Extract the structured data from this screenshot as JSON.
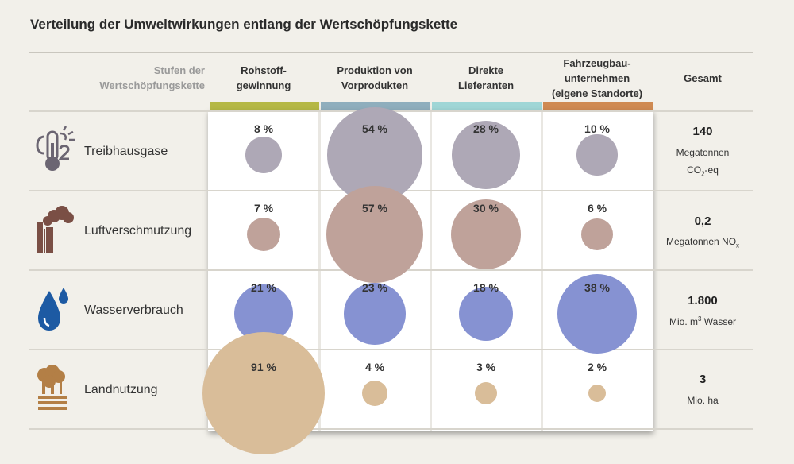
{
  "title": "Verteilung der Umweltwirkungen entlang der Wertschöpfungskette",
  "header": {
    "row_header_line1": "Stufen der",
    "row_header_line2": "Wertschöpfungskette",
    "columns": [
      {
        "line1": "Rohstoff-",
        "line2": "gewinnung",
        "line3": "",
        "color": "#b5b845"
      },
      {
        "line1": "Produktion von",
        "line2": "Vorprodukten",
        "line3": "",
        "color": "#8faebd"
      },
      {
        "line1": "Direkte",
        "line2": "Lieferanten",
        "line3": "",
        "color": "#9fd6d6"
      },
      {
        "line1": "Fahrzeugbau-",
        "line2": "unternehmen",
        "line3": "(eigene Standorte)",
        "color": "#cf8a52"
      }
    ],
    "total_label": "Gesamt"
  },
  "chart_data": {
    "type": "table",
    "categories": [
      "Rohstoffgewinnung",
      "Produktion von Vorprodukten",
      "Direkte Lieferanten",
      "Fahrzeugbauunternehmen (eigene Standorte)"
    ],
    "series": [
      {
        "name": "Treibhausgase",
        "values": [
          8,
          54,
          28,
          10
        ],
        "labels": [
          "8 %",
          "54 %",
          "28 %",
          "10 %"
        ],
        "color": "#aea8b6",
        "icon": "co2-thermometer-icon",
        "total_value": "140",
        "total_unit_line1": "Megatonnen",
        "total_unit_main": "CO",
        "total_unit_sub": "2",
        "total_unit_tail": "-eq"
      },
      {
        "name": "Luftverschmutzung",
        "values": [
          7,
          57,
          30,
          6
        ],
        "labels": [
          "7 %",
          "57 %",
          "30 %",
          "6 %"
        ],
        "color": "#bfa29a",
        "icon": "factory-smoke-icon",
        "total_value": "0,2",
        "total_unit_line1": "",
        "total_unit_main": "Megatonnen NO",
        "total_unit_sub": "x",
        "total_unit_tail": ""
      },
      {
        "name": "Wasserverbrauch",
        "values": [
          21,
          23,
          18,
          38
        ],
        "labels": [
          "21 %",
          "23 %",
          "18 %",
          "38 %"
        ],
        "color": "#8692d2",
        "icon": "water-drops-icon",
        "total_value": "1.800",
        "total_unit_line1": "",
        "total_unit_main": "Mio. m",
        "total_unit_sup": "3",
        "total_unit_tail": " Wasser"
      },
      {
        "name": "Landnutzung",
        "values": [
          91,
          4,
          3,
          2
        ],
        "labels": [
          "91 %",
          "4 %",
          "3 %",
          "2 %"
        ],
        "color": "#d9bd99",
        "icon": "trees-land-icon",
        "total_value": "3",
        "total_unit_line1": "",
        "total_unit_main": "Mio. ha",
        "total_unit_tail": ""
      }
    ]
  }
}
